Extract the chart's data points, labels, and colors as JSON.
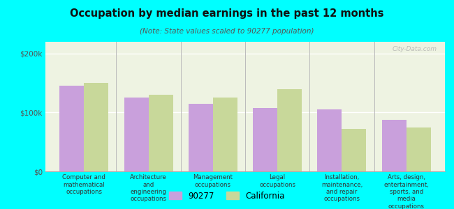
{
  "title": "Occupation by median earnings in the past 12 months",
  "subtitle": "(Note: State values scaled to 90277 population)",
  "categories": [
    "Computer and\nmathematical\noccupations",
    "Architecture\nand\nengineering\noccupations",
    "Management\noccupations",
    "Legal\noccupations",
    "Installation,\nmaintenance,\nand repair\noccupations",
    "Arts, design,\nentertainment,\nsports, and\nmedia\noccupations"
  ],
  "values_90277": [
    145000,
    125000,
    115000,
    108000,
    105000,
    88000
  ],
  "values_california": [
    150000,
    130000,
    125000,
    140000,
    72000,
    75000
  ],
  "color_90277": "#c9a0dc",
  "color_california": "#c8d89a",
  "background_color": "#00ffff",
  "plot_bg_color": "#eef3e2",
  "yticks": [
    0,
    100000,
    200000
  ],
  "ytick_labels": [
    "$0",
    "$100k",
    "$200k"
  ],
  "ylim": [
    0,
    220000
  ],
  "legend_labels": [
    "90277",
    "California"
  ],
  "watermark": "City-Data.com"
}
